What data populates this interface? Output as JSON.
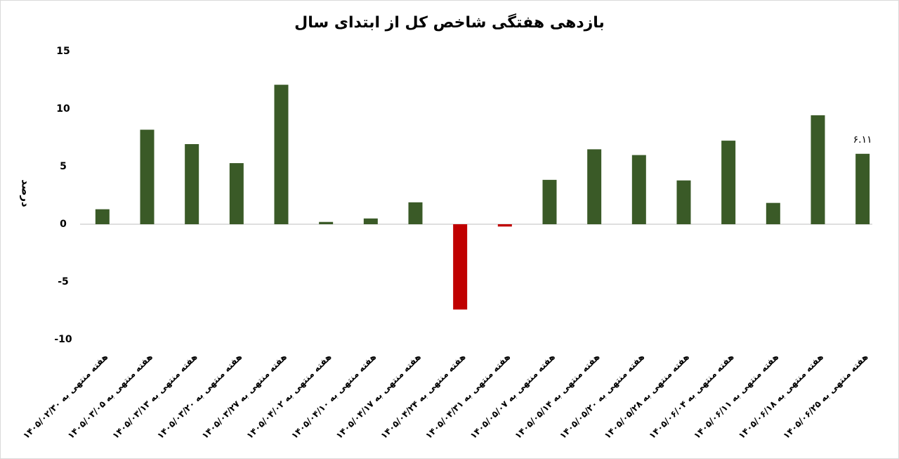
{
  "chart_data": {
    "type": "bar",
    "title": "بازدهی هفتگی شاخص کل از ابتدای سال",
    "y_label": "درصد",
    "categories": [
      "هفته منتهی به ۱۴۰۵/۰۲/۳۰",
      "هفته منتهی به ۱۴۰۵/۰۳/۰۵",
      "هفته منتهی به ۱۴۰۵/۰۳/۱۳",
      "هفته منتهی به ۱۴۰۵/۰۳/۲۰",
      "هفته منتهی به ۱۴۰۵/۰۳/۲۷",
      "هفته منتهی به ۱۴۰۵/۰۴/۰۲",
      "هفته منتهی به ۱۴۰۵/۰۴/۱۰",
      "هفته منتهی به ۱۴۰۵/۰۴/۱۷",
      "هفته منتهی به ۱۴۰۵/۰۴/۲۴",
      "هفته منتهی به ۱۴۰۵/۰۴/۳۱",
      "هفته منتهی به ۱۴۰۵/۰۵/۰۷",
      "هفته منتهی به ۱۴۰۵/۰۵/۱۴",
      "هفته منتهی به ۱۴۰۵/۰۵/۲۰",
      "هفته منتهی به ۱۴۰۵/۰۵/۲۸",
      "هفته منتهی به ۱۴۰۵/۰۶/۰۴",
      "هفته منتهی به ۱۴۰۵/۰۶/۱۱",
      "هفته منتهی به ۱۴۰۵/۰۶/۱۸",
      "هفته منتهی به ۱۴۰۵/۰۶/۲۵"
    ],
    "values": [
      1.3,
      8.2,
      6.95,
      5.3,
      12.1,
      0.2,
      0.5,
      1.9,
      -7.4,
      -0.2,
      3.85,
      6.5,
      6.0,
      3.8,
      7.25,
      1.85,
      9.45,
      6.11
    ],
    "value_labels": [
      null,
      null,
      null,
      null,
      null,
      null,
      null,
      null,
      null,
      null,
      null,
      null,
      null,
      null,
      null,
      null,
      null,
      "۶.۱۱"
    ],
    "color": "#3a5a27",
    "negative_color": "#c00000",
    "ylim": [
      -10,
      15
    ],
    "yticks": [
      -10,
      -5,
      0,
      5,
      10,
      15
    ]
  }
}
